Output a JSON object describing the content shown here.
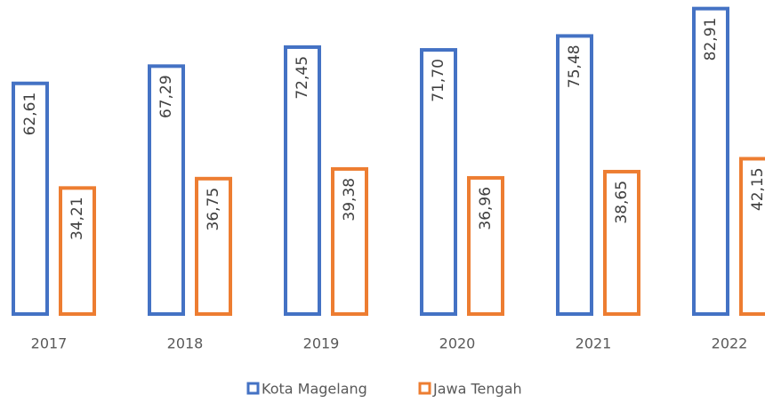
{
  "chart_data": {
    "type": "bar",
    "categories": [
      "2017",
      "2018",
      "2019",
      "2020",
      "2021",
      "2022"
    ],
    "series": [
      {
        "name": "Kota Magelang",
        "color": "#4472c4",
        "values": [
          62.61,
          67.29,
          72.45,
          71.7,
          75.48,
          82.91
        ],
        "value_labels": [
          "62,61",
          "67,29",
          "72,45",
          "71,70",
          "75,48",
          "82,91"
        ]
      },
      {
        "name": "Jawa Tengah",
        "color": "#ed7d31",
        "values": [
          34.21,
          36.75,
          39.38,
          36.96,
          38.65,
          42.15
        ],
        "value_labels": [
          "34,21",
          "36,75",
          "39,38",
          "36,96",
          "38,65",
          "42,15"
        ]
      }
    ],
    "ylim": [
      0,
      85
    ],
    "legend": "bottom"
  }
}
